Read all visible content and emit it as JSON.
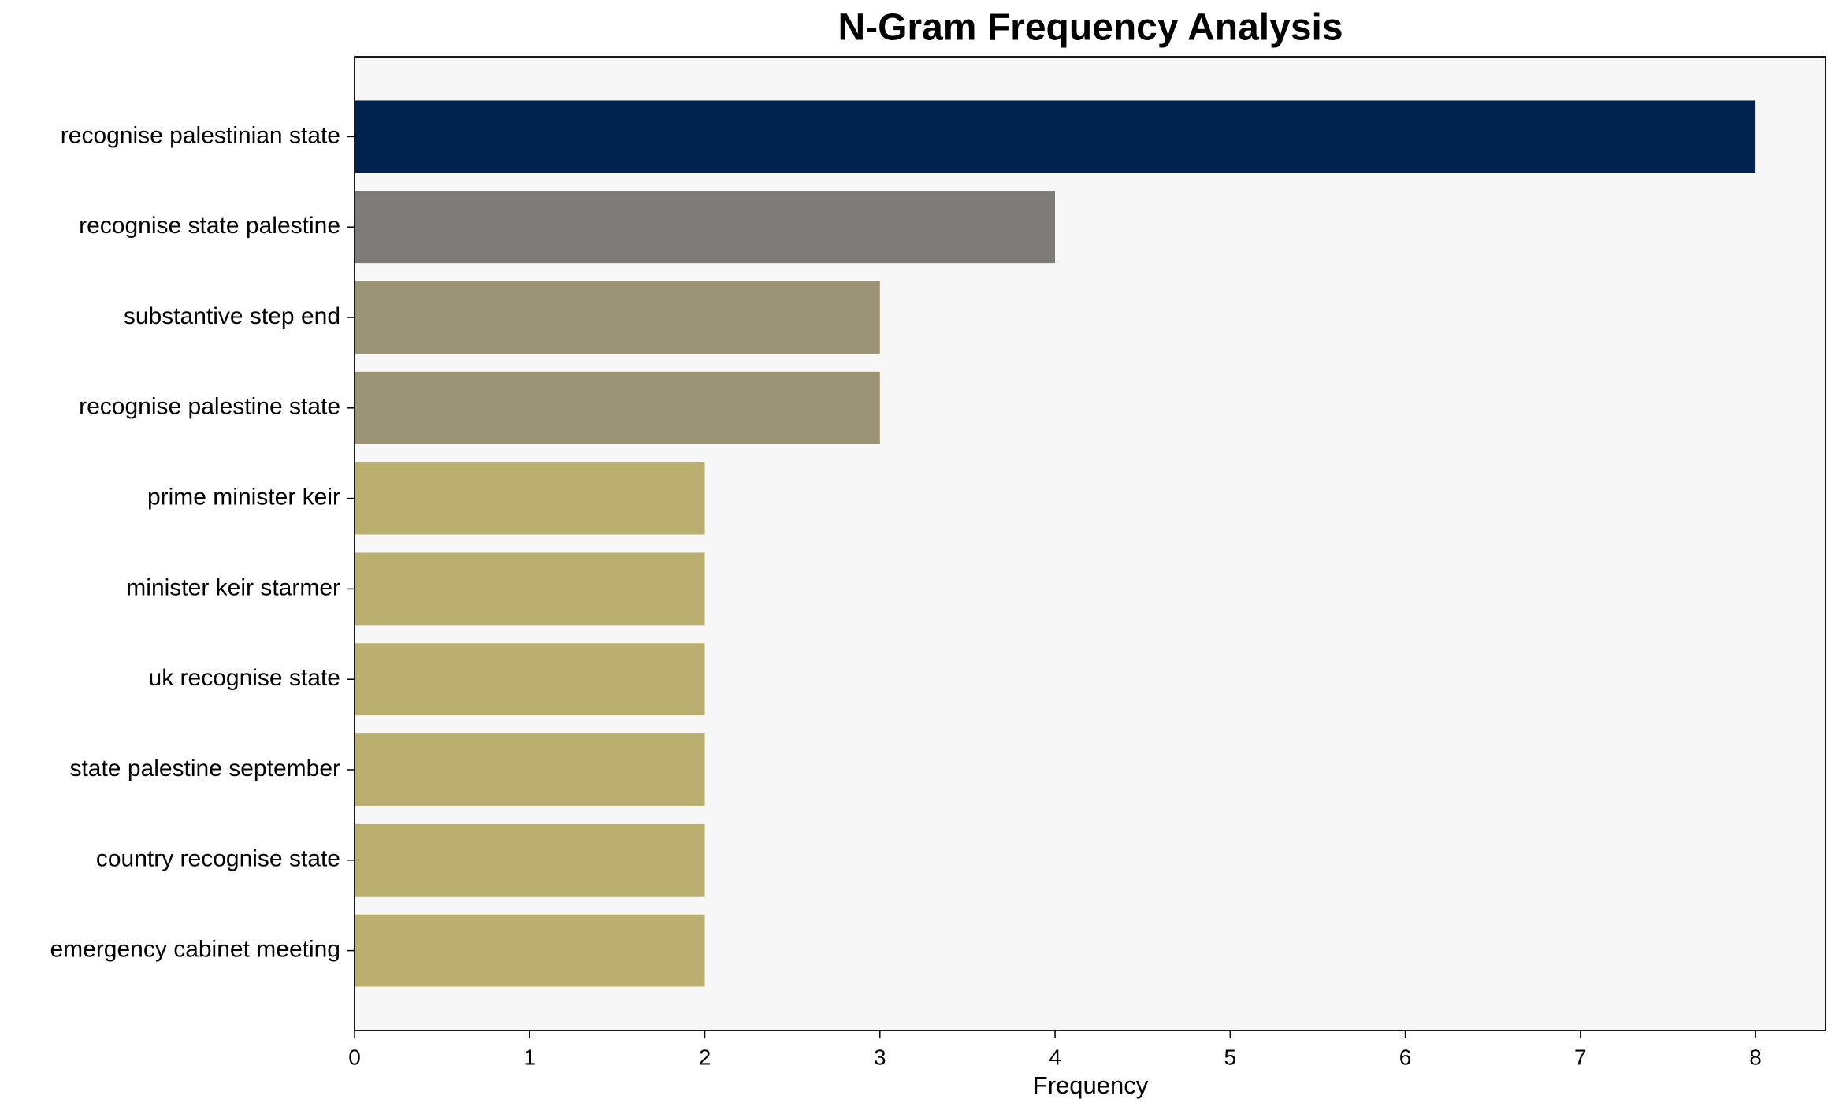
{
  "chart_data": {
    "type": "barh",
    "title": "N-Gram Frequency Analysis",
    "x_label": "Frequency",
    "categories": [
      "recognise palestinian state",
      "recognise state palestine",
      "substantive step end",
      "recognise palestine state",
      "prime minister keir",
      "minister keir starmer",
      "uk recognise state",
      "state palestine september",
      "country recognise state",
      "emergency cabinet meeting"
    ],
    "values": [
      8,
      4,
      3,
      3,
      2,
      2,
      2,
      2,
      2,
      2
    ],
    "colors": [
      "#00224e",
      "#7c7b78",
      "#9a9374",
      "#9a9374",
      "#bbaf6f",
      "#bbaf6f",
      "#bbaf6f",
      "#bbaf6f",
      "#bbaf6f",
      "#bbaf6f"
    ],
    "xlim": [
      0,
      8.4
    ],
    "xticks": [
      0,
      1,
      2,
      3,
      4,
      5,
      6,
      7,
      8
    ]
  }
}
